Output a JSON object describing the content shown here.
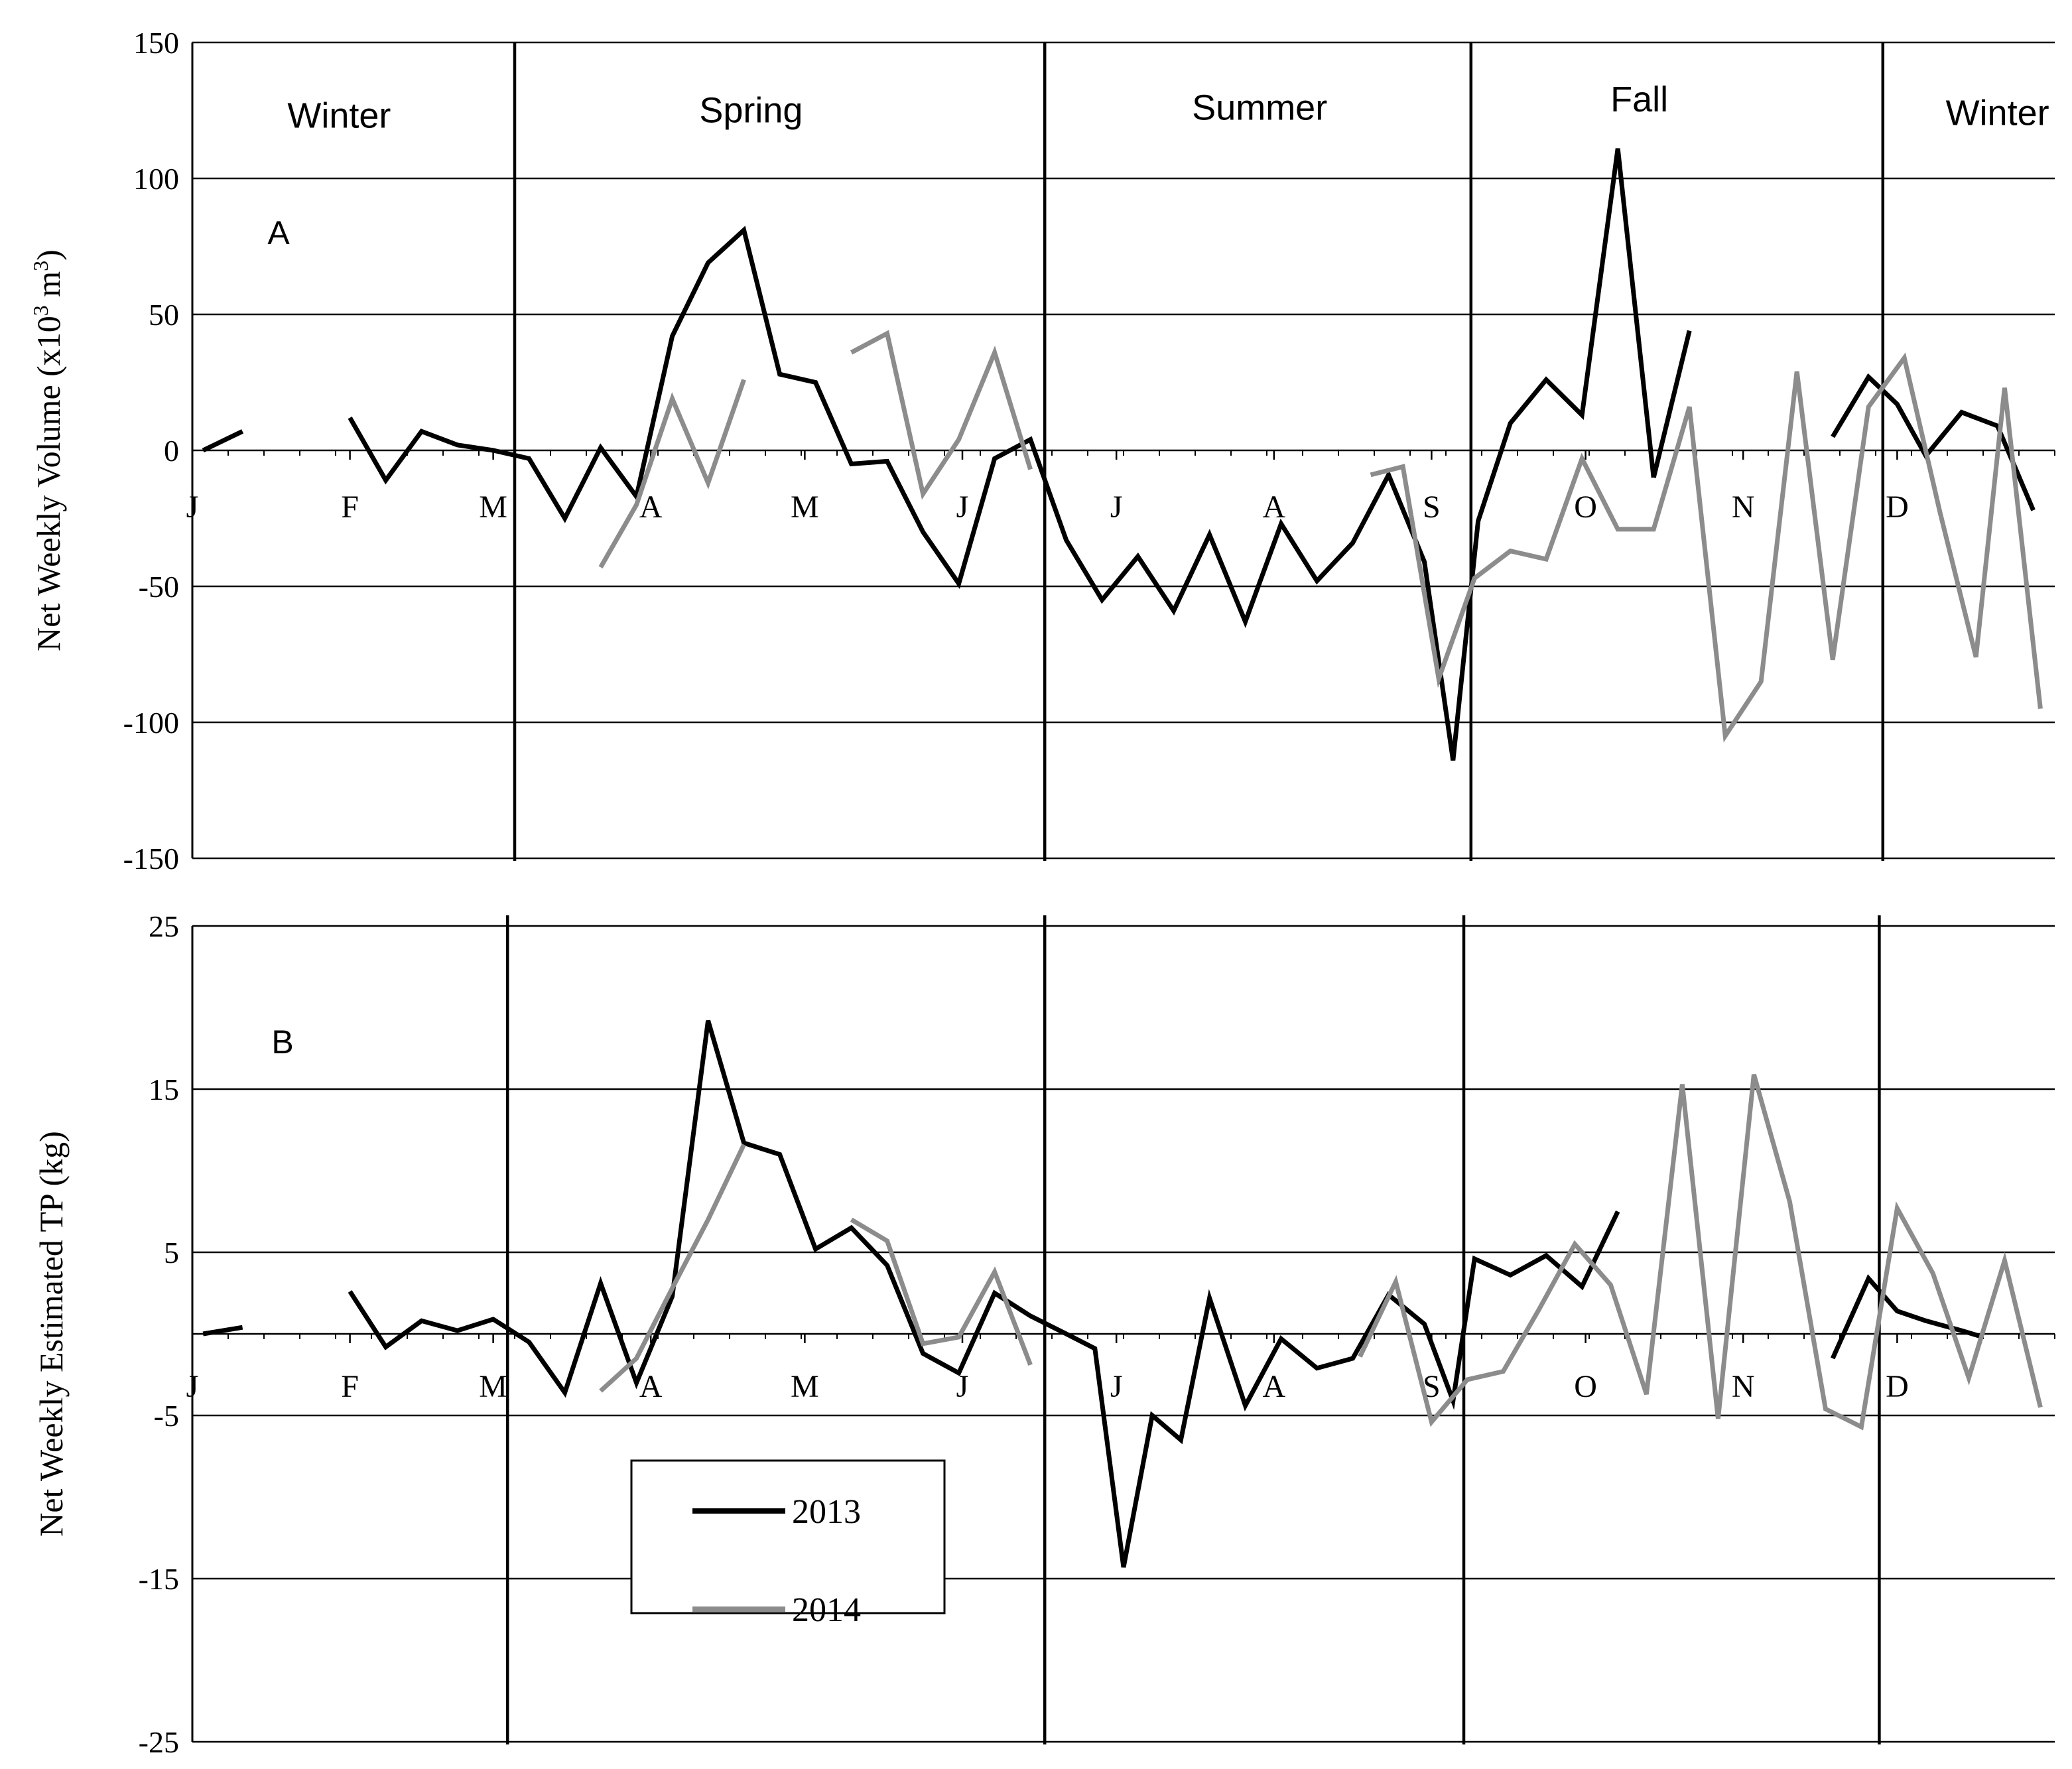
{
  "chart_data": [
    {
      "panel_label": "A",
      "type": "line",
      "ylabel": "Net Weekly Volume (x10",
      "ylabel_sup": "3",
      "ylabel_mid": " m",
      "ylabel_sup2": "3",
      "ylabel_end": ")",
      "ylim": [
        -150,
        150
      ],
      "yticks": [
        -150,
        -100,
        -50,
        0,
        50,
        100,
        150
      ],
      "ytick_labels": [
        "-150",
        "-100",
        "-50",
        "0",
        "50",
        "100",
        "150"
      ],
      "xlim": [
        0,
        52
      ],
      "months": [
        {
          "label": "J",
          "week": 0
        },
        {
          "label": "F",
          "week": 4.4
        },
        {
          "label": "M",
          "week": 8.4
        },
        {
          "label": "A",
          "week": 12.8
        },
        {
          "label": "M",
          "week": 17.1
        },
        {
          "label": "J",
          "week": 21.5
        },
        {
          "label": "J",
          "week": 25.8
        },
        {
          "label": "A",
          "week": 30.2
        },
        {
          "label": "S",
          "week": 34.6
        },
        {
          "label": "O",
          "week": 38.9
        },
        {
          "label": "N",
          "week": 43.3
        },
        {
          "label": "D",
          "week": 47.6
        }
      ],
      "season_dividers": [
        9,
        23.8,
        35.7,
        47.2
      ],
      "seasons": [
        {
          "label": "Winter",
          "week": 4.1,
          "y": 123
        },
        {
          "label": "Spring",
          "week": 15.6,
          "y": 125
        },
        {
          "label": "Summer",
          "week": 29.8,
          "y": 126
        },
        {
          "label": "Fall",
          "week": 40.4,
          "y": 129
        },
        {
          "label": "Winter",
          "week": 50.4,
          "y": 124
        }
      ],
      "series": [
        {
          "name": "2013",
          "color": "#000000",
          "segments": [
            [
              [
                0.3,
                0
              ],
              [
                1.4,
                7
              ]
            ],
            [
              [
                4.4,
                12
              ],
              [
                5.4,
                -11
              ],
              [
                6.4,
                7
              ],
              [
                7.4,
                2
              ],
              [
                8.4,
                0
              ],
              [
                9.4,
                -3
              ],
              [
                10.4,
                -25
              ],
              [
                11.4,
                1
              ],
              [
                12.4,
                -17
              ],
              [
                13.4,
                42
              ],
              [
                14.4,
                69
              ],
              [
                15.4,
                81
              ],
              [
                16.4,
                28
              ],
              [
                17.4,
                25
              ],
              [
                18.4,
                -5
              ],
              [
                19.4,
                -4
              ],
              [
                20.4,
                -30
              ],
              [
                21.4,
                -49
              ],
              [
                22.4,
                -3
              ],
              [
                23.4,
                4
              ],
              [
                24.4,
                -33
              ],
              [
                25.4,
                -55
              ],
              [
                26.4,
                -39
              ],
              [
                27.4,
                -59
              ],
              [
                28.4,
                -31
              ],
              [
                29.4,
                -63
              ],
              [
                30.4,
                -27
              ],
              [
                31.4,
                -48
              ],
              [
                32.4,
                -34
              ],
              [
                33.4,
                -9
              ],
              [
                34.4,
                -41
              ],
              [
                35.2,
                -114
              ],
              [
                35.9,
                -26
              ],
              [
                36.8,
                10
              ],
              [
                37.8,
                26
              ],
              [
                38.8,
                13
              ],
              [
                39.8,
                111
              ],
              [
                40.8,
                -10
              ]
            ],
            [
              [
                40.8,
                -10
              ],
              [
                41.8,
                44
              ]
            ],
            [
              [
                45.8,
                5
              ],
              [
                46.8,
                27
              ],
              [
                47.6,
                17
              ],
              [
                48.4,
                -2
              ],
              [
                49.4,
                14
              ],
              [
                50.4,
                9
              ],
              [
                51.4,
                -22
              ]
            ]
          ]
        },
        {
          "name": "2014",
          "color": "#8c8c8c",
          "segments": [
            [
              [
                11.4,
                -43
              ],
              [
                12.4,
                -20
              ],
              [
                13.4,
                19
              ],
              [
                14.4,
                -12
              ],
              [
                15.4,
                26
              ]
            ],
            [
              [
                18.4,
                36
              ],
              [
                19.4,
                43
              ],
              [
                20.4,
                -16
              ],
              [
                21.4,
                4
              ],
              [
                22.4,
                36
              ],
              [
                23.4,
                -7
              ]
            ],
            [
              [
                32.9,
                -9
              ],
              [
                33.8,
                -6
              ],
              [
                34.8,
                -84
              ],
              [
                35.8,
                -47
              ],
              [
                36.8,
                -37
              ],
              [
                37.8,
                -40
              ],
              [
                38.8,
                -3
              ],
              [
                39.8,
                -29
              ],
              [
                40.8,
                -29
              ],
              [
                41.8,
                16
              ],
              [
                42.8,
                -105
              ],
              [
                43.8,
                -85
              ],
              [
                44.8,
                29
              ],
              [
                45.8,
                -77
              ],
              [
                46.8,
                16
              ],
              [
                47.8,
                34
              ],
              [
                48.8,
                -23
              ],
              [
                49.8,
                -76
              ],
              [
                50.6,
                23
              ],
              [
                51.6,
                -95
              ]
            ]
          ]
        }
      ]
    },
    {
      "panel_label": "B",
      "type": "line",
      "ylabel": "Net Weekly Estimated  TP (kg)",
      "ylim": [
        -25,
        25
      ],
      "yticks": [
        -25,
        -15,
        -5,
        5,
        15,
        25
      ],
      "ytick_labels": [
        "-25",
        "-15",
        "-5",
        "5",
        "15",
        "25"
      ],
      "zero_gridline": 0,
      "xlim": [
        0,
        52
      ],
      "months": [
        {
          "label": "J",
          "week": 0
        },
        {
          "label": "F",
          "week": 4.4
        },
        {
          "label": "M",
          "week": 8.4
        },
        {
          "label": "A",
          "week": 12.8
        },
        {
          "label": "M",
          "week": 17.1
        },
        {
          "label": "J",
          "week": 21.5
        },
        {
          "label": "J",
          "week": 25.8
        },
        {
          "label": "A",
          "week": 30.2
        },
        {
          "label": "S",
          "week": 34.6
        },
        {
          "label": "O",
          "week": 38.9
        },
        {
          "label": "N",
          "week": 43.3
        },
        {
          "label": "D",
          "week": 47.6
        }
      ],
      "season_dividers": [
        8.8,
        23.8,
        35.5,
        47.1
      ],
      "legend": {
        "placement": "lower-left",
        "entries": [
          {
            "label": "2013",
            "color": "#000000"
          },
          {
            "label": "2014",
            "color": "#8c8c8c"
          }
        ]
      },
      "series": [
        {
          "name": "2013",
          "color": "#000000",
          "segments": [
            [
              [
                0.3,
                0
              ],
              [
                1.4,
                0.4
              ]
            ],
            [
              [
                4.4,
                2.6
              ],
              [
                5.4,
                -0.8
              ],
              [
                6.4,
                0.8
              ],
              [
                7.4,
                0.2
              ],
              [
                8.4,
                0.9
              ],
              [
                9.4,
                -0.5
              ],
              [
                10.4,
                -3.6
              ],
              [
                11.4,
                3.1
              ],
              [
                12.4,
                -3
              ],
              [
                13.4,
                2.3
              ],
              [
                14.4,
                19.2
              ],
              [
                15.4,
                11.7
              ],
              [
                16.4,
                11
              ],
              [
                17.4,
                5.2
              ],
              [
                18.4,
                6.5
              ],
              [
                19.4,
                4.2
              ],
              [
                20.4,
                -1.2
              ],
              [
                21.4,
                -2.4
              ],
              [
                22.4,
                2.5
              ],
              [
                23.4,
                1.1
              ],
              [
                24.4,
                0
              ],
              [
                25.2,
                -0.9
              ],
              [
                26,
                -14.3
              ],
              [
                26.8,
                -5
              ],
              [
                27.6,
                -6.5
              ],
              [
                28.4,
                2.2
              ],
              [
                29.4,
                -4.4
              ],
              [
                30.4,
                -0.3
              ],
              [
                31.4,
                -2.1
              ],
              [
                32.4,
                -1.5
              ],
              [
                33.4,
                2.4
              ],
              [
                34.4,
                0.6
              ],
              [
                35.2,
                -4.1
              ],
              [
                35.8,
                4.6
              ],
              [
                36.8,
                3.6
              ],
              [
                37.8,
                4.8
              ],
              [
                38.8,
                2.9
              ],
              [
                39.8,
                7.5
              ]
            ],
            [
              [
                45.8,
                -1.5
              ],
              [
                46.8,
                3.4
              ],
              [
                47.6,
                1.4
              ],
              [
                48.4,
                0.8
              ],
              [
                49.4,
                0.2
              ],
              [
                50,
                -0.2
              ]
            ]
          ]
        },
        {
          "name": "2014",
          "color": "#8c8c8c",
          "segments": [
            [
              [
                11.4,
                -3.5
              ],
              [
                12.4,
                -1.5
              ],
              [
                13.4,
                2.8
              ],
              [
                14.4,
                7
              ],
              [
                15.4,
                11.6
              ]
            ],
            [
              [
                18.4,
                7
              ],
              [
                19.4,
                5.7
              ],
              [
                20.4,
                -0.6
              ],
              [
                21.4,
                -0.2
              ],
              [
                22.4,
                3.8
              ],
              [
                23.4,
                -1.9
              ]
            ],
            [
              [
                32.6,
                -1.4
              ],
              [
                33.6,
                3.2
              ],
              [
                34.6,
                -5.4
              ],
              [
                35.6,
                -2.8
              ],
              [
                36.6,
                -2.3
              ],
              [
                37.6,
                1.5
              ],
              [
                38.6,
                5.5
              ],
              [
                39.6,
                3
              ],
              [
                40.6,
                -3.7
              ],
              [
                41.6,
                15.3
              ],
              [
                42.6,
                -5.2
              ],
              [
                43.6,
                15.9
              ],
              [
                44.6,
                8.1
              ],
              [
                45.6,
                -4.6
              ],
              [
                46.6,
                -5.7
              ],
              [
                47.6,
                7.7
              ],
              [
                48.6,
                3.7
              ],
              [
                49.6,
                -2.7
              ],
              [
                50.6,
                4.5
              ],
              [
                51.6,
                -4.5
              ]
            ]
          ]
        }
      ]
    }
  ]
}
